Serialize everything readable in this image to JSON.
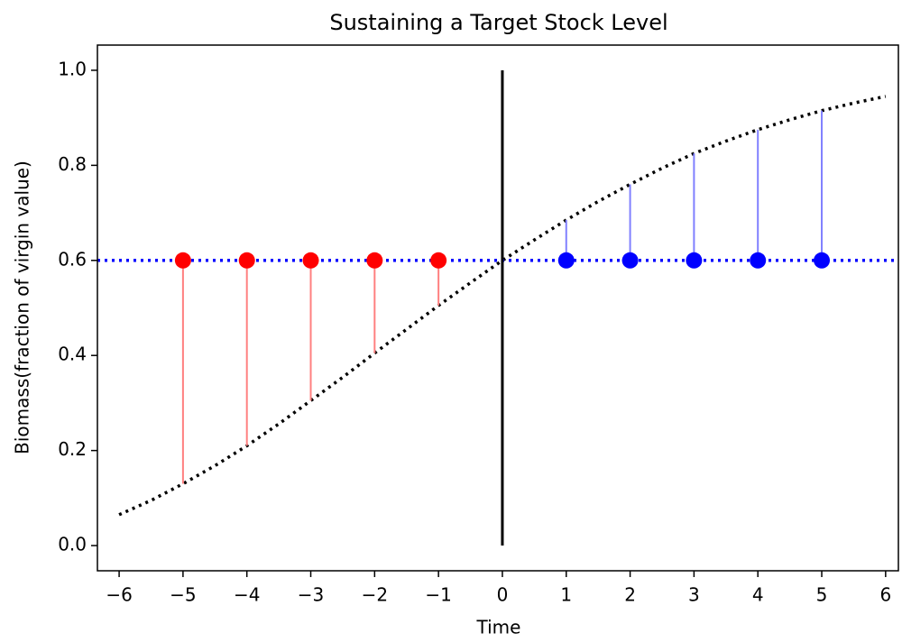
{
  "chart_data": {
    "type": "stem",
    "title": "Sustaining a Target Stock Level",
    "xlabel": "Time",
    "ylabel": "Biomass(fraction of virgin value)",
    "xlim": [
      -6.34,
      6.2
    ],
    "ylim": [
      -0.053,
      1.053
    ],
    "xticks": [
      {
        "value": -6,
        "label": "−6"
      },
      {
        "value": -5,
        "label": "−5"
      },
      {
        "value": -4,
        "label": "−4"
      },
      {
        "value": -3,
        "label": "−3"
      },
      {
        "value": -2,
        "label": "−2"
      },
      {
        "value": -1,
        "label": "−1"
      },
      0,
      1,
      2,
      3,
      4,
      5,
      6
    ],
    "yticks": [
      {
        "value": 0,
        "label": "0.0"
      },
      0.2,
      0.4,
      0.6,
      0.8,
      {
        "value": 1,
        "label": "1.0"
      }
    ],
    "curve": {
      "color": "#000000",
      "x": [
        -6,
        -5.5,
        -5,
        -4.5,
        -4,
        -3.5,
        -3,
        -2.5,
        -2,
        -1.5,
        -1,
        -0.5,
        0,
        0.5,
        1,
        1.5,
        2,
        2.5,
        3,
        3.5,
        4,
        4.5,
        5,
        5.5,
        6
      ],
      "values": [
        0.065,
        0.095,
        0.13,
        0.168,
        0.21,
        0.256,
        0.305,
        0.354,
        0.405,
        0.455,
        0.505,
        0.553,
        0.6,
        0.643,
        0.685,
        0.724,
        0.76,
        0.794,
        0.825,
        0.851,
        0.875,
        0.896,
        0.915,
        0.931,
        0.945
      ]
    },
    "target": {
      "value": 0.6,
      "color": "#0000ff"
    },
    "vline": {
      "x": 0,
      "values": [
        0,
        1
      ],
      "color": "#000000"
    },
    "markers": [
      {
        "color": "#ff0000",
        "stem_color": "#ff8080",
        "x": [
          -5,
          -4,
          -3,
          -2,
          -1
        ],
        "values": [
          0.6,
          0.6,
          0.6,
          0.6,
          0.6
        ]
      },
      {
        "color": "#0000ff",
        "stem_color": "#8080ff",
        "x": [
          1,
          2,
          3,
          4,
          5
        ],
        "values": [
          0.6,
          0.6,
          0.6,
          0.6,
          0.6
        ]
      }
    ]
  }
}
